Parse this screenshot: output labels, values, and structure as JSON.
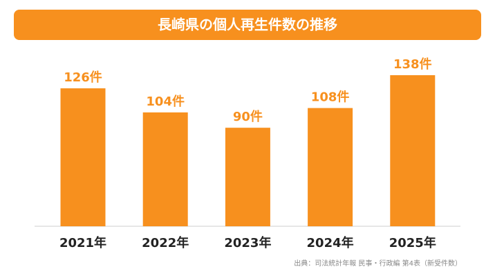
{
  "chart_data": {
    "type": "bar",
    "title": "長崎県の個人再生件数の推移",
    "categories": [
      "2021年",
      "2022年",
      "2023年",
      "2024年",
      "2025年"
    ],
    "values": [
      126,
      104,
      90,
      108,
      138
    ],
    "value_labels": [
      "126件",
      "104件",
      "90件",
      "108件",
      "138件"
    ],
    "color": "#f7901e",
    "source": "出典：司法統計年報 民事・行政編 第4表（新受件数）"
  }
}
